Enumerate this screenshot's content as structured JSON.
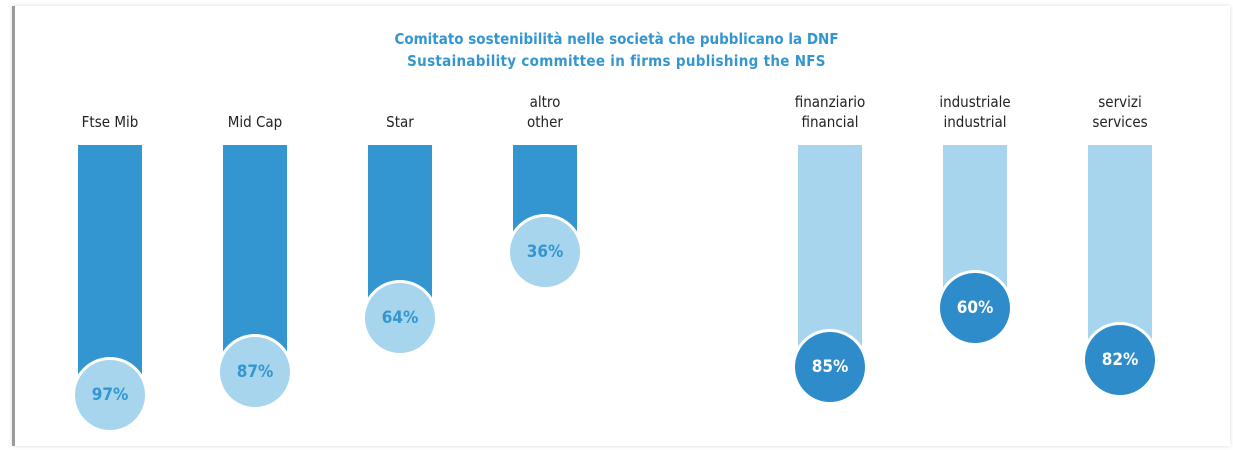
{
  "title": "Comitato sostenibilità nelle società che pubblicano la DNF",
  "subtitle": "Sustainability committee in firms publishing the NFS",
  "chart_data": [
    {
      "type": "bar",
      "categories": [
        "Ftse Mib",
        "Mid Cap",
        "Star",
        "altro\nother"
      ],
      "values": [
        97,
        87,
        64,
        36
      ],
      "value_labels": [
        "97%",
        "87%",
        "64%",
        "36%"
      ],
      "color": "#3496d0",
      "marker_color": "#a7d5ee",
      "label_color": "#3496d0"
    },
    {
      "type": "bar",
      "categories": [
        "finanziario\nfinancial",
        "industriale\nindustrial",
        "servizi\nservices"
      ],
      "values": [
        85,
        60,
        82
      ],
      "value_labels": [
        "85%",
        "60%",
        "82%"
      ],
      "color": "#a7d5ee",
      "marker_color": "#2f8ccb",
      "label_color": "#ffffff"
    }
  ]
}
